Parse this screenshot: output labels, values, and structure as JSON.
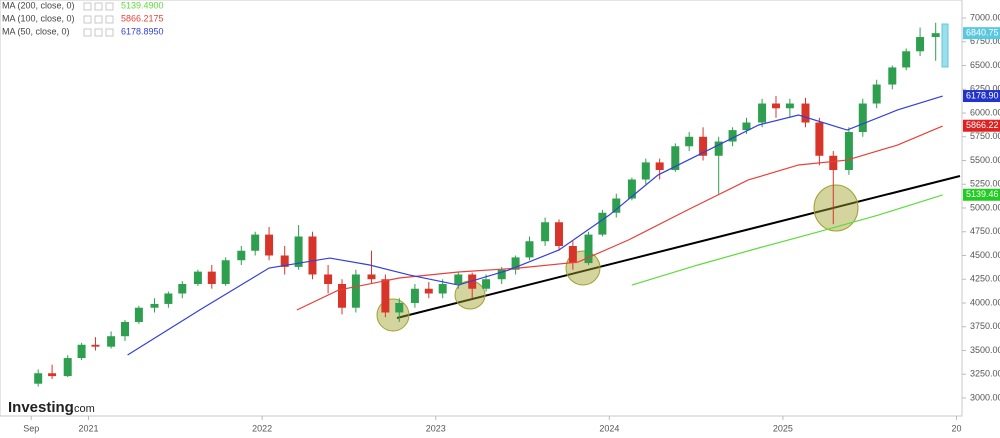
{
  "chart_data": {
    "type": "candlestick",
    "up_color": "#2e9e4f",
    "down_color": "#d8352a",
    "xlim": [
      2020.49,
      2026.02
    ],
    "ylim": [
      2810,
      7190
    ],
    "xticks": [
      {
        "value": 2020.67,
        "label": "Sep"
      },
      2021,
      2022,
      2023,
      2024,
      2025,
      {
        "value": 2026,
        "label": "20"
      }
    ],
    "yticks": [
      {
        "value": 3000,
        "label": "3000.00"
      },
      {
        "value": 3250,
        "label": "3250.00"
      },
      {
        "value": 3500,
        "label": "3500.00"
      },
      {
        "value": 3750,
        "label": "3750.00"
      },
      {
        "value": 4000,
        "label": "4000.00"
      },
      {
        "value": 4250,
        "label": "4250.00"
      },
      {
        "value": 4500,
        "label": "4500.00"
      },
      {
        "value": 4750,
        "label": "4750.00"
      },
      {
        "value": 5000,
        "label": "5000.00"
      },
      {
        "value": 5250,
        "label": "5250.00"
      },
      {
        "value": 5500,
        "label": "5500.00"
      },
      {
        "value": 5750,
        "label": "5750.00"
      },
      {
        "value": 6000,
        "label": "6000.00"
      },
      {
        "value": 6250,
        "label": "6250.00"
      },
      {
        "value": 6500,
        "label": "6500.00"
      },
      {
        "value": 6750,
        "label": "6750.00"
      },
      {
        "value": 7000,
        "label": "7000.00"
      }
    ],
    "grid": false,
    "x": [
      2020.71,
      2020.79,
      2020.88,
      2020.96,
      2021.04,
      2021.13,
      2021.21,
      2021.29,
      2021.38,
      2021.46,
      2021.54,
      2021.63,
      2021.71,
      2021.79,
      2021.88,
      2021.96,
      2022.04,
      2022.13,
      2022.21,
      2022.29,
      2022.38,
      2022.46,
      2022.54,
      2022.63,
      2022.71,
      2022.79,
      2022.88,
      2022.96,
      2023.04,
      2023.13,
      2023.21,
      2023.29,
      2023.38,
      2023.46,
      2023.54,
      2023.63,
      2023.71,
      2023.79,
      2023.88,
      2023.96,
      2024.04,
      2024.13,
      2024.21,
      2024.29,
      2024.38,
      2024.46,
      2024.54,
      2024.63,
      2024.71,
      2024.79,
      2024.88,
      2024.96,
      2025.04,
      2025.13,
      2025.21,
      2025.29,
      2025.38,
      2025.46,
      2025.54,
      2025.63,
      2025.71,
      2025.79,
      2025.88
    ],
    "open": [
      3150,
      3260,
      3230,
      3420,
      3560,
      3540,
      3650,
      3800,
      3950,
      3990,
      4100,
      4200,
      4330,
      4200,
      4450,
      4550,
      4720,
      4500,
      4380,
      4700,
      4300,
      4200,
      3950,
      4300,
      4250,
      3900,
      4000,
      4150,
      4100,
      4200,
      4300,
      4150,
      4250,
      4350,
      4480,
      4650,
      4850,
      4600,
      4420,
      4720,
      4950,
      5100,
      5300,
      5480,
      5400,
      5650,
      5750,
      5550,
      5700,
      5820,
      5900,
      6100,
      6050,
      6100,
      5900,
      5550,
      5400,
      5800,
      6100,
      6300,
      6480,
      6650,
      6800
    ],
    "high": [
      3300,
      3350,
      3450,
      3580,
      3640,
      3700,
      3820,
      3970,
      4050,
      4120,
      4230,
      4350,
      4400,
      4480,
      4600,
      4750,
      4800,
      4600,
      4820,
      4750,
      4400,
      4250,
      4350,
      4550,
      4300,
      4050,
      4200,
      4220,
      4250,
      4320,
      4320,
      4300,
      4380,
      4500,
      4700,
      4900,
      4880,
      4650,
      4750,
      4980,
      5150,
      5320,
      5520,
      5520,
      5680,
      5800,
      5850,
      5750,
      5850,
      5950,
      6150,
      6180,
      6150,
      6160,
      5950,
      5600,
      5850,
      6150,
      6350,
      6500,
      6680,
      6900,
      6950
    ],
    "low": [
      3120,
      3200,
      3220,
      3400,
      3500,
      3520,
      3600,
      3780,
      3900,
      3950,
      4050,
      4180,
      4150,
      4180,
      4400,
      4500,
      4450,
      4300,
      4350,
      4250,
      4100,
      3880,
      3900,
      4200,
      3850,
      3800,
      3950,
      4050,
      4050,
      4150,
      4050,
      4120,
      4200,
      4300,
      4450,
      4600,
      4550,
      4350,
      4400,
      4700,
      4900,
      5080,
      5250,
      5300,
      5380,
      5600,
      5500,
      5150,
      5650,
      5780,
      5850,
      5950,
      5950,
      5850,
      5450,
      4830,
      5350,
      5750,
      6050,
      6250,
      6450,
      6600,
      6550
    ],
    "close": [
      3260,
      3230,
      3420,
      3560,
      3540,
      3650,
      3800,
      3950,
      3990,
      4100,
      4200,
      4330,
      4200,
      4450,
      4550,
      4720,
      4500,
      4380,
      4700,
      4300,
      4200,
      3950,
      4300,
      4250,
      3900,
      4000,
      4150,
      4100,
      4200,
      4300,
      4150,
      4250,
      4350,
      4480,
      4650,
      4850,
      4600,
      4420,
      4720,
      4950,
      5100,
      5300,
      5480,
      5400,
      5650,
      5750,
      5550,
      5700,
      5820,
      5900,
      6100,
      6050,
      6100,
      5900,
      5550,
      5400,
      5800,
      6100,
      6300,
      6480,
      6650,
      6800,
      6840.75
    ],
    "series": [
      {
        "name": "MA (200, close, 0)",
        "legend_value": "5139.4900",
        "color": "#5ddc3c",
        "x": [
          2024.13,
          2024.51,
          2024.86,
          2025.2,
          2025.55,
          2025.92
        ],
        "values": [
          4189,
          4400,
          4579,
          4747,
          4926,
          5137
        ]
      },
      {
        "name": "MA (100, close, 0)",
        "legend_value": "5866.2175",
        "color": "#e8403a",
        "x": [
          2022.2,
          2022.44,
          2022.79,
          2023.13,
          2023.48,
          2023.82,
          2024.11,
          2024.45,
          2024.8,
          2025.09,
          2025.37,
          2025.66,
          2025.92
        ],
        "values": [
          3926,
          4136,
          4263,
          4326,
          4368,
          4431,
          4663,
          4979,
          5295,
          5453,
          5505,
          5663,
          5863
        ]
      },
      {
        "name": "MA (50, close, 0)",
        "legend_value": "6178.8950",
        "color": "#3240d8",
        "x": [
          2021.225,
          2021.64,
          2022.04,
          2022.39,
          2022.62,
          2022.85,
          2023.13,
          2023.42,
          2023.71,
          2024.0,
          2024.28,
          2024.57,
          2024.86,
          2025.09,
          2025.37,
          2025.66,
          2025.92
        ],
        "values": [
          3452,
          3926,
          4368,
          4473,
          4400,
          4294,
          4189,
          4347,
          4558,
          4926,
          5347,
          5610,
          5874,
          5979,
          5821,
          6032,
          6179
        ]
      }
    ],
    "price_tags": [
      {
        "value": 6840.75,
        "color": "#5bc8e0"
      },
      {
        "value": 6178.9,
        "label": "6178.90",
        "color": "#2233cc"
      },
      {
        "value": 5866.22,
        "color": "#dd2222"
      },
      {
        "value": 5139.46,
        "color": "#22cc22"
      }
    ],
    "watermark": [
      "Investing",
      ".com"
    ]
  }
}
